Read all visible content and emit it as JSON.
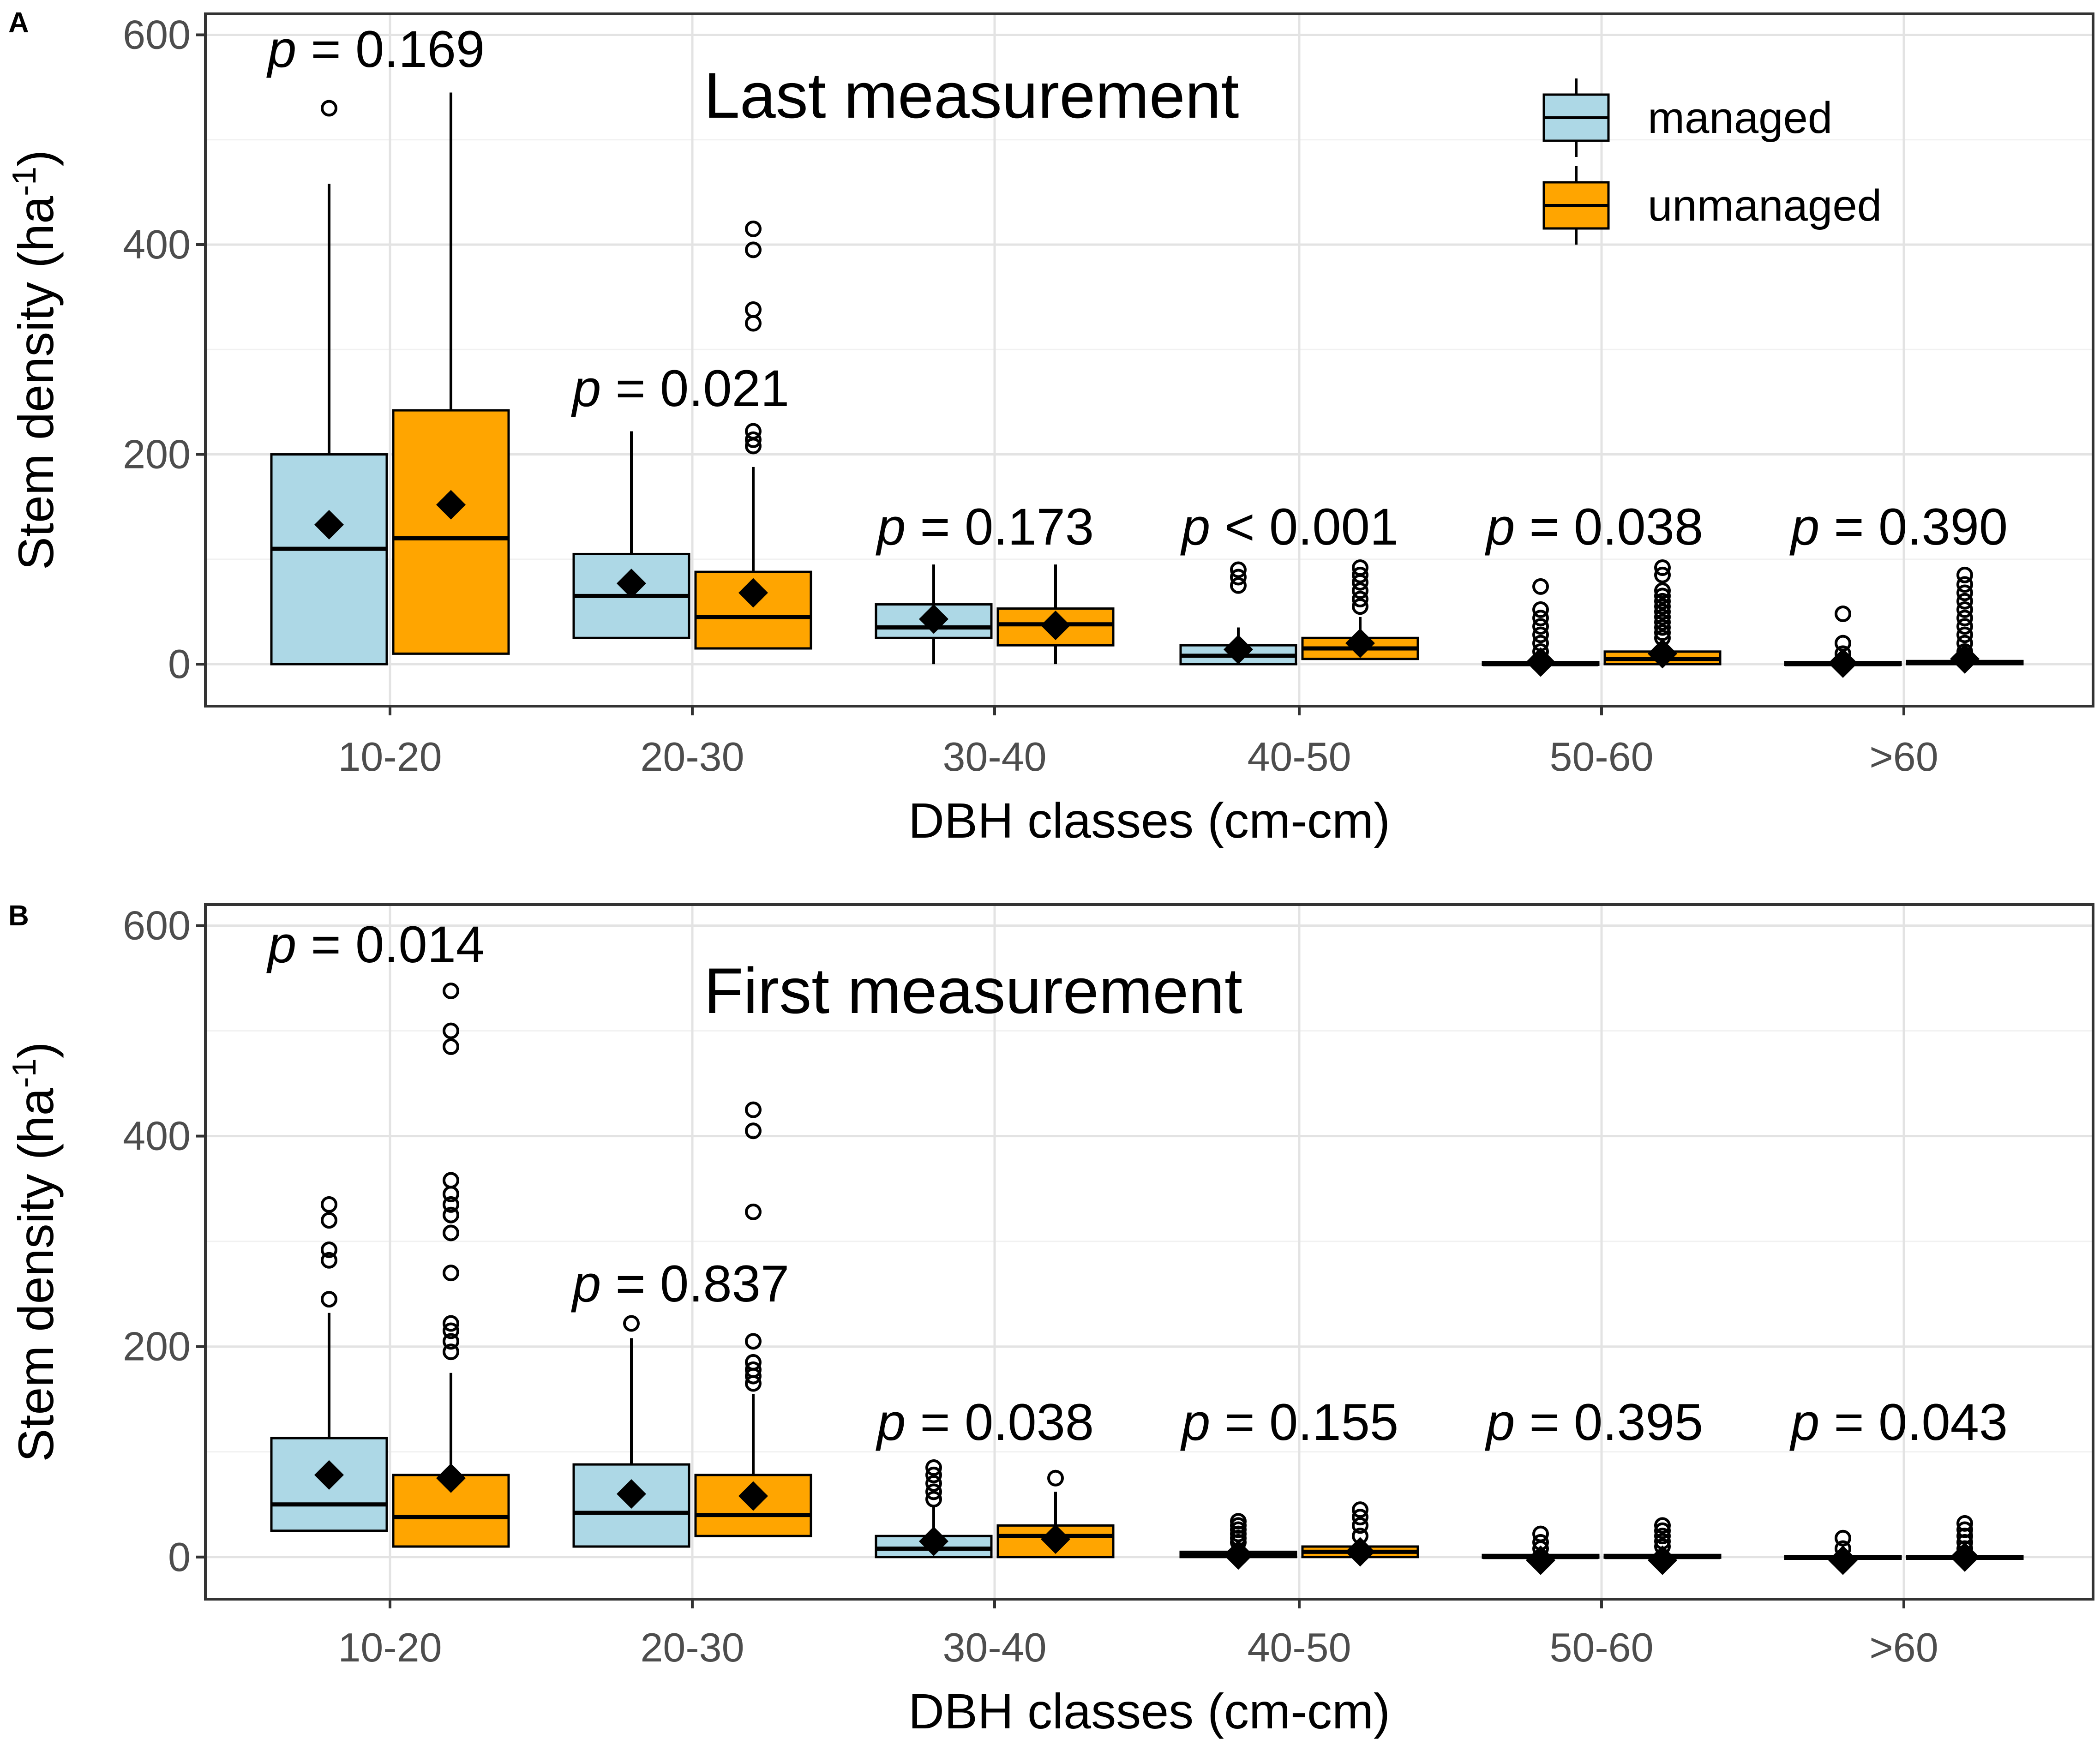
{
  "chart_data": [
    {
      "panel": "A",
      "type": "box",
      "title": "Last measurement",
      "xlabel": "DBH classes (cm-cm)",
      "ylabel": "Stem density (ha-1)",
      "ylabel_base": "Stem density (ha",
      "ylabel_sup": "-1",
      "ylabel_close": ")",
      "ylim": [
        -40,
        620
      ],
      "yticks": [
        0,
        200,
        400,
        600
      ],
      "yticks_labels": [
        "0",
        "200",
        "400",
        "600"
      ],
      "grid": true,
      "legend_position": "top-right",
      "categories": [
        "10-20",
        "20-30",
        "30-40",
        "40-50",
        "50-60",
        ">60"
      ],
      "p_values": [
        {
          "prefix": "p",
          "text": " = 0.169"
        },
        {
          "prefix": "p",
          "text": " = 0.021"
        },
        {
          "prefix": "p",
          "text": " = 0.173"
        },
        {
          "prefix": "p",
          "text": " < 0.001"
        },
        {
          "prefix": "p",
          "text": " = 0.038"
        },
        {
          "prefix": "p",
          "text": " = 0.390"
        }
      ],
      "series": [
        {
          "name": "managed",
          "color": "#add8e6",
          "boxes": [
            {
              "min": 0,
              "q1": 0,
              "median": 110,
              "q3": 200,
              "max": 458,
              "mean": 133,
              "outliers": [
                530
              ]
            },
            {
              "min": 25,
              "q1": 25,
              "median": 65,
              "q3": 105,
              "max": 222,
              "mean": 77,
              "outliers": []
            },
            {
              "min": 0,
              "q1": 25,
              "median": 35,
              "q3": 57,
              "max": 95,
              "mean": 43,
              "outliers": []
            },
            {
              "min": 0,
              "q1": 0,
              "median": 8,
              "q3": 18,
              "max": 35,
              "mean": 14,
              "outliers": [
                75,
                83,
                90
              ]
            },
            {
              "min": 0,
              "q1": 0,
              "median": 0,
              "q3": 2,
              "max": 5,
              "mean": 2,
              "outliers": [
                12,
                20,
                28,
                36,
                44,
                52,
                74
              ]
            },
            {
              "min": 0,
              "q1": 0,
              "median": 0,
              "q3": 2,
              "max": 3,
              "mean": 1,
              "outliers": [
                10,
                20,
                48
              ]
            }
          ]
        },
        {
          "name": "unmanaged",
          "color": "#ffa500",
          "boxes": [
            {
              "min": 10,
              "q1": 10,
              "median": 120,
              "q3": 242,
              "max": 545,
              "mean": 152,
              "outliers": []
            },
            {
              "min": 15,
              "q1": 15,
              "median": 45,
              "q3": 88,
              "max": 188,
              "mean": 68,
              "outliers": [
                208,
                214,
                222,
                325,
                338,
                395,
                415
              ]
            },
            {
              "min": 0,
              "q1": 18,
              "median": 38,
              "q3": 53,
              "max": 95,
              "mean": 37,
              "outliers": []
            },
            {
              "min": 5,
              "q1": 5,
              "median": 15,
              "q3": 25,
              "max": 45,
              "mean": 20,
              "outliers": [
                55,
                62,
                70,
                78,
                85,
                92
              ]
            },
            {
              "min": 0,
              "q1": 0,
              "median": 5,
              "q3": 12,
              "max": 20,
              "mean": 10,
              "outliers": [
                25,
                30,
                35,
                40,
                45,
                50,
                55,
                60,
                65,
                70,
                85,
                92
              ]
            },
            {
              "min": 0,
              "q1": 0,
              "median": 2,
              "q3": 3,
              "max": 5,
              "mean": 5,
              "outliers": [
                12,
                20,
                28,
                36,
                44,
                52,
                60,
                68,
                76,
                85
              ]
            }
          ]
        }
      ]
    },
    {
      "panel": "B",
      "type": "box",
      "title": "First measurement",
      "xlabel": "DBH classes (cm-cm)",
      "ylabel": "Stem density (ha-1)",
      "ylabel_base": "Stem density (ha",
      "ylabel_sup": "-1",
      "ylabel_close": ")",
      "ylim": [
        -40,
        620
      ],
      "yticks": [
        0,
        200,
        400,
        600
      ],
      "yticks_labels": [
        "0",
        "200",
        "400",
        "600"
      ],
      "grid": true,
      "categories": [
        "10-20",
        "20-30",
        "30-40",
        "40-50",
        "50-60",
        ">60"
      ],
      "p_values": [
        {
          "prefix": "p",
          "text": " = 0.014"
        },
        {
          "prefix": "p",
          "text": " = 0.837"
        },
        {
          "prefix": "p",
          "text": " = 0.038"
        },
        {
          "prefix": "p",
          "text": " = 0.155"
        },
        {
          "prefix": "p",
          "text": " = 0.395"
        },
        {
          "prefix": "p",
          "text": " = 0.043"
        }
      ],
      "series": [
        {
          "name": "managed",
          "color": "#add8e6",
          "boxes": [
            {
              "min": 25,
              "q1": 25,
              "median": 50,
              "q3": 113,
              "max": 232,
              "mean": 78,
              "outliers": [
                245,
                282,
                292,
                320,
                335
              ]
            },
            {
              "min": 10,
              "q1": 10,
              "median": 42,
              "q3": 88,
              "max": 208,
              "mean": 60,
              "outliers": [
                222
              ]
            },
            {
              "min": 0,
              "q1": 0,
              "median": 8,
              "q3": 20,
              "max": 48,
              "mean": 15,
              "outliers": [
                55,
                62,
                70,
                78,
                85
              ]
            },
            {
              "min": 0,
              "q1": 0,
              "median": 2,
              "q3": 5,
              "max": 10,
              "mean": 2,
              "outliers": [
                14,
                18,
                22,
                26,
                30,
                34
              ]
            },
            {
              "min": 0,
              "q1": 0,
              "median": 0,
              "q3": 2,
              "max": 3,
              "mean": -3,
              "outliers": [
                8,
                14,
                22
              ]
            },
            {
              "min": 0,
              "q1": 0,
              "median": 0,
              "q3": 1,
              "max": 2,
              "mean": -3,
              "outliers": [
                8,
                18
              ]
            }
          ]
        },
        {
          "name": "unmanaged",
          "color": "#ffa500",
          "boxes": [
            {
              "min": 10,
              "q1": 10,
              "median": 38,
              "q3": 78,
              "max": 175,
              "mean": 75,
              "outliers": [
                195,
                205,
                215,
                222,
                270,
                308,
                325,
                335,
                345,
                358,
                485,
                500,
                538
              ]
            },
            {
              "min": 20,
              "q1": 20,
              "median": 40,
              "q3": 78,
              "max": 155,
              "mean": 58,
              "outliers": [
                165,
                172,
                178,
                185,
                205,
                328,
                405,
                425
              ]
            },
            {
              "min": 0,
              "q1": 0,
              "median": 20,
              "q3": 30,
              "max": 62,
              "mean": 17,
              "outliers": [
                75
              ]
            },
            {
              "min": 0,
              "q1": 0,
              "median": 5,
              "q3": 10,
              "max": 15,
              "mean": 5,
              "outliers": [
                20,
                30,
                38,
                45
              ]
            },
            {
              "min": 0,
              "q1": 0,
              "median": 0,
              "q3": 2,
              "max": 5,
              "mean": -3,
              "outliers": [
                10,
                15,
                20,
                25,
                30
              ]
            },
            {
              "min": 0,
              "q1": 0,
              "median": 0,
              "q3": 1,
              "max": 2,
              "mean": 0,
              "outliers": [
                8,
                14,
                20,
                26,
                32
              ]
            }
          ]
        }
      ]
    }
  ],
  "legend": {
    "items": [
      {
        "label": "managed",
        "color": "#add8e6"
      },
      {
        "label": "unmanaged",
        "color": "#ffa500"
      }
    ]
  },
  "colors": {
    "managed": "#add8e6",
    "unmanaged": "#ffa500",
    "mean_marker": "#000000",
    "grid": "#e3e3e3"
  }
}
